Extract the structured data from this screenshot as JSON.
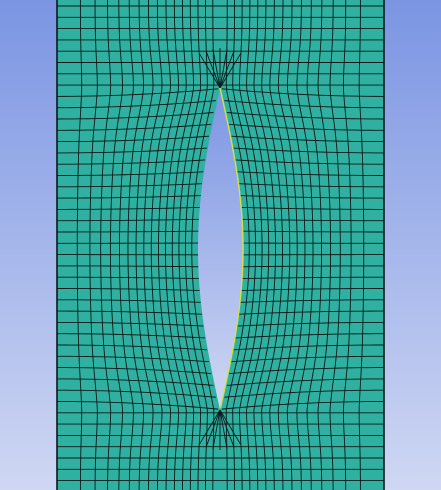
{
  "viewport": {
    "background_top_color": "#7b95e3",
    "background_bottom_color": "#cfd7f3",
    "mesh_fill_color": "#2fb0a0",
    "mesh_line_color": "#0b1a1a",
    "crack_edge_color": "#d4e24a"
  }
}
